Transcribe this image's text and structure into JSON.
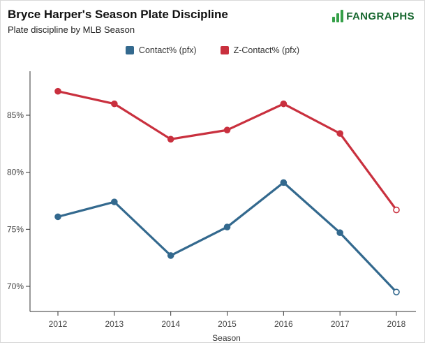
{
  "header": {
    "title": "Bryce Harper's Season Plate Discipline",
    "subtitle": "Plate discipline by MLB Season",
    "logo_text": "FANGRAPHS",
    "logo_bar_color": "#35a048",
    "logo_text_color": "#17672f"
  },
  "chart_data": {
    "type": "line",
    "title": "Bryce Harper's Season Plate Discipline",
    "subtitle": "Plate discipline by MLB Season",
    "xlabel": "Season",
    "ylabel": "",
    "categories": [
      "2012",
      "2013",
      "2014",
      "2015",
      "2016",
      "2017",
      "2018"
    ],
    "series": [
      {
        "name": "Contact% (pfx)",
        "color": "#33698e",
        "values": [
          76.1,
          77.4,
          72.7,
          75.2,
          79.1,
          74.7,
          69.5
        ]
      },
      {
        "name": "Z-Contact% (pfx)",
        "color": "#c9303e",
        "values": [
          87.1,
          86.0,
          82.9,
          83.7,
          86.0,
          83.4,
          76.7
        ]
      }
    ],
    "yticks": [
      70,
      75,
      80,
      85
    ],
    "ylim": [
      68.5,
      89
    ],
    "grid": false,
    "legend_position": "top",
    "tick_format": "percent",
    "axis_color": "#333333",
    "tick_label_color": "#444444",
    "last_point_style": "open-circle"
  }
}
